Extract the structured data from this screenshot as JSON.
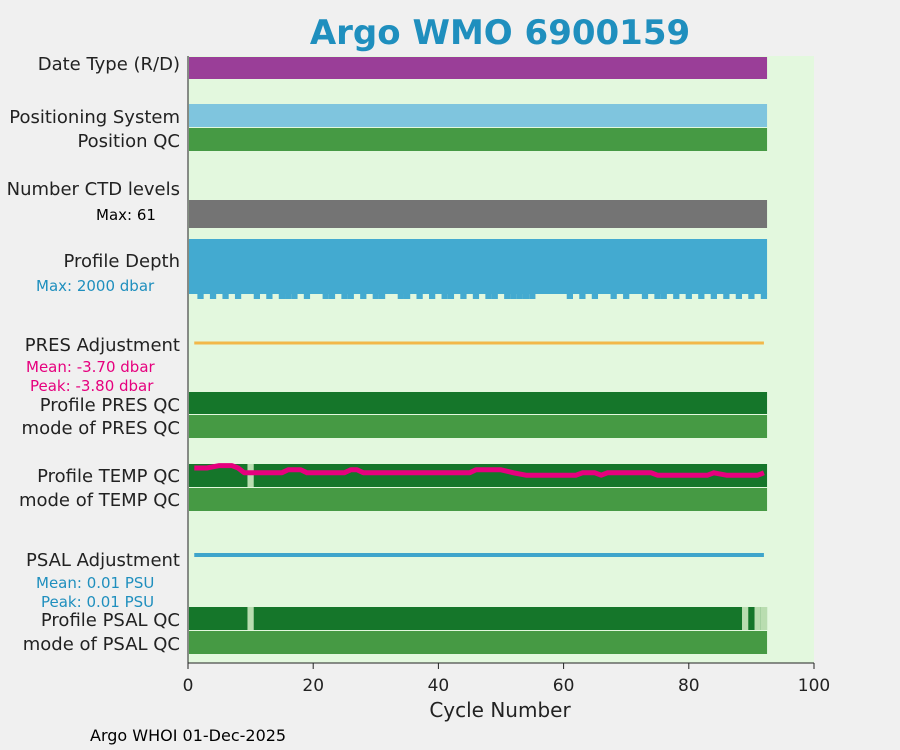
{
  "chart_data": {
    "type": "bar",
    "title": "Argo WMO 6900159",
    "xlabel": "Cycle Number",
    "xlim": [
      0,
      100
    ],
    "xticks": [
      0,
      20,
      40,
      60,
      80,
      100
    ],
    "last_cycle": 92,
    "footer": "Argo WHOI 01-Dec-2025",
    "colors": {
      "background": "#e3f8de",
      "date_type": "#9a3e98",
      "positioning": "#7fc5de",
      "qc_light_green": "#469a44",
      "qc_dark_green": "#15762a",
      "qc_pale": "#b9ddb0",
      "ctd": "#747474",
      "depth": "#43aad0",
      "pres_adj": "#f2b84a",
      "temp_line": "#e6007e",
      "psal_adj": "#3ea5cb",
      "note_blue": "#1f8fbe",
      "note_pink": "#e6007e"
    },
    "rows": [
      {
        "key": "date_type",
        "label": "Date Type (R/D)"
      },
      {
        "key": "positioning",
        "label": "Positioning System"
      },
      {
        "key": "position_qc",
        "label": "Position QC"
      },
      {
        "key": "ctd_levels",
        "label": "Number CTD levels",
        "note": "Max: 61"
      },
      {
        "key": "profile_depth",
        "label": "Profile Depth",
        "note": "Max: 2000 dbar"
      },
      {
        "key": "pres_adjustment",
        "label": "PRES Adjustment",
        "note": "Mean: -3.70 dbar",
        "note2": "Peak: -3.80 dbar"
      },
      {
        "key": "profile_pres_qc",
        "label": "Profile PRES QC"
      },
      {
        "key": "mode_pres_qc",
        "label": "mode of PRES QC"
      },
      {
        "key": "profile_temp_qc",
        "label": "Profile TEMP QC"
      },
      {
        "key": "mode_temp_qc",
        "label": "mode of TEMP QC"
      },
      {
        "key": "psal_adjustment",
        "label": "PSAL Adjustment",
        "note": "Mean: 0.01 PSU",
        "note2": "Peak: 0.01 PSU"
      },
      {
        "key": "profile_psal_qc",
        "label": "Profile PSAL QC"
      },
      {
        "key": "mode_psal_qc",
        "label": "mode of PSAL QC"
      }
    ],
    "profile_temp_qc_pale_cycles": [
      10
    ],
    "profile_psal_qc_pale_cycles": [
      10,
      89,
      91,
      92
    ],
    "temp_adjustment_line": [
      [
        1,
        0.0
      ],
      [
        3,
        0.0
      ],
      [
        5,
        0.4
      ],
      [
        7,
        0.4
      ],
      [
        8,
        0.0
      ],
      [
        9,
        -0.8
      ],
      [
        11,
        -0.8
      ],
      [
        15,
        -0.8
      ],
      [
        16,
        -0.3
      ],
      [
        18,
        -0.3
      ],
      [
        19,
        -0.8
      ],
      [
        25,
        -0.8
      ],
      [
        26,
        -0.3
      ],
      [
        27,
        -0.3
      ],
      [
        28,
        -0.8
      ],
      [
        45,
        -0.8
      ],
      [
        46,
        -0.3
      ],
      [
        50,
        -0.3
      ],
      [
        52,
        -0.8
      ],
      [
        54,
        -1.2
      ],
      [
        62,
        -1.2
      ],
      [
        63,
        -0.8
      ],
      [
        65,
        -0.8
      ],
      [
        66,
        -1.2
      ],
      [
        67,
        -0.8
      ],
      [
        74,
        -0.8
      ],
      [
        75,
        -1.2
      ],
      [
        83,
        -1.2
      ],
      [
        84,
        -0.8
      ],
      [
        86,
        -1.2
      ],
      [
        91,
        -1.2
      ],
      [
        92,
        -0.8
      ]
    ],
    "depth_short_cycles": [
      1,
      3,
      5,
      7,
      9,
      10,
      12,
      14,
      18,
      20,
      21,
      24,
      27,
      29,
      32,
      33,
      36,
      38,
      40,
      43,
      45,
      47,
      50,
      56,
      57,
      58,
      59,
      60,
      62,
      64,
      66,
      67,
      69,
      71,
      72,
      74,
      77,
      79,
      81,
      83,
      85,
      87,
      89,
      91
    ]
  }
}
